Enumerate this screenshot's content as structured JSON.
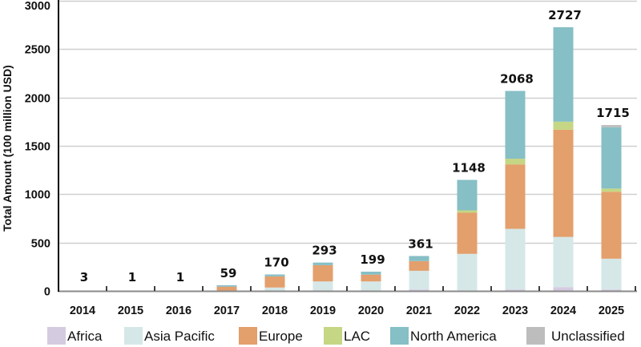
{
  "chart_data": {
    "type": "bar",
    "stacked": true,
    "title": "",
    "xlabel": "",
    "ylabel": "Total Amount (100 million USD)",
    "ylim": [
      0,
      3000
    ],
    "yticks": [
      0,
      500,
      1000,
      1500,
      2000,
      2500,
      3000
    ],
    "grid": true,
    "legend_position": "bottom",
    "categories": [
      "2014",
      "2015",
      "2016",
      "2017",
      "2018",
      "2019",
      "2020",
      "2021",
      "2022",
      "2023",
      "2024",
      "2025"
    ],
    "totals": [
      3,
      1,
      1,
      59,
      170,
      293,
      199,
      361,
      1148,
      2068,
      2727,
      1715
    ],
    "series": [
      {
        "name": "Africa",
        "color": "#d5cbe1",
        "values": [
          0,
          0,
          0,
          0,
          0,
          0,
          0,
          15,
          5,
          15,
          40,
          15
        ]
      },
      {
        "name": "Asia Pacific",
        "color": "#d6e7e7",
        "values": [
          0,
          0,
          0,
          2,
          35,
          98,
          98,
          193,
          378,
          627,
          518,
          318
        ]
      },
      {
        "name": "Europe",
        "color": "#e39f6c",
        "values": [
          3,
          1,
          1,
          42,
          115,
          168,
          70,
          100,
          425,
          666,
          1109,
          692
        ]
      },
      {
        "name": "LAC",
        "color": "#c5d684",
        "values": [
          0,
          0,
          0,
          0,
          0,
          0,
          0,
          0,
          25,
          59,
          83,
          33
        ]
      },
      {
        "name": "North America",
        "color": "#86bfc6",
        "values": [
          0,
          0,
          0,
          15,
          20,
          27,
          31,
          53,
          315,
          701,
          977,
          634
        ]
      },
      {
        "name": "Unclassified",
        "color": "#bdbdbd",
        "values": [
          0,
          0,
          0,
          0,
          0,
          0,
          0,
          0,
          0,
          0,
          0,
          23
        ]
      }
    ]
  }
}
